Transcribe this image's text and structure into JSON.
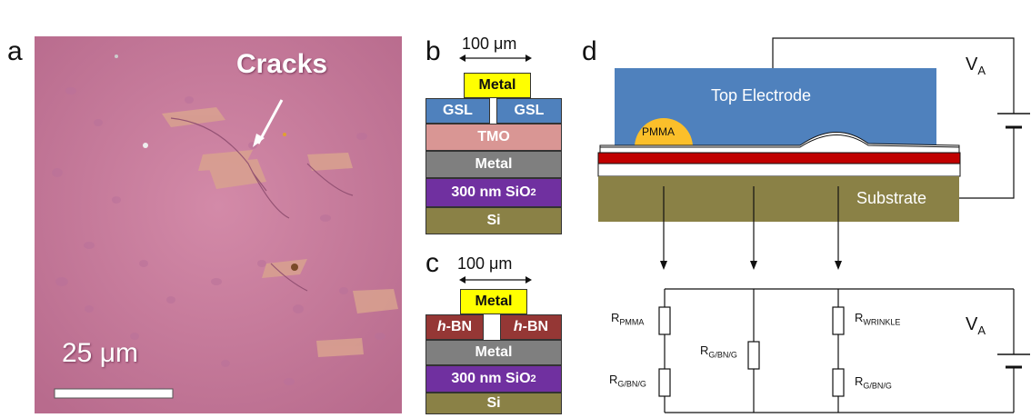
{
  "panels": {
    "a": {
      "letter": "a",
      "annotation": "Cracks",
      "scale_bar_label": "25 μm",
      "colors": {
        "substrate": "#c97a9c",
        "annotation": "#ffffff"
      }
    },
    "b": {
      "letter": "b",
      "dimension": "100 μm",
      "layers": {
        "top_contact": "Metal",
        "gsl_left": "GSL",
        "gsl_right": "GSL",
        "tmo": "TMO",
        "metal": "Metal",
        "oxide": "300 nm SiO",
        "oxide_sub": "2",
        "si": "Si"
      },
      "colors": {
        "contact": "#ffff00",
        "gsl": "#4f81bd",
        "tmo": "#d99694",
        "metal": "#7f7f7f",
        "oxide": "#7030a0",
        "si": "#8a8146"
      }
    },
    "c": {
      "letter": "c",
      "dimension": "100 μm",
      "layers": {
        "top_contact": "Metal",
        "hbn_left_italic": "h",
        "hbn_left": "-BN",
        "hbn_right_italic": "h",
        "hbn_right": "-BN",
        "metal": "Metal",
        "oxide": "300 nm SiO",
        "oxide_sub": "2",
        "si": "Si"
      },
      "colors": {
        "contact": "#ffff00",
        "hbn": "#953735",
        "metal": "#7f7f7f",
        "oxide": "#7030a0",
        "si": "#8a8146"
      }
    },
    "d": {
      "letter": "d",
      "top_electrode": "Top Electrode",
      "pmma": "PMMA",
      "substrate": "Substrate",
      "voltage_top": {
        "main": "V",
        "sub": "A"
      },
      "voltage_bottom": {
        "main": "V",
        "sub": "A"
      },
      "resistors": [
        {
          "main": "R",
          "sub": "PMMA"
        },
        {
          "main": "R",
          "sub": "G/BN/G"
        },
        {
          "main": "R",
          "sub": "G/BN/G"
        },
        {
          "main": "R",
          "sub": "WRINKLE"
        },
        {
          "main": "R",
          "sub": "G/BN/G"
        }
      ],
      "colors": {
        "electrode": "#4f81bd",
        "pmma": "#fbbf2a",
        "substrate": "#8a8146",
        "red_layer": "#c00000"
      }
    }
  }
}
